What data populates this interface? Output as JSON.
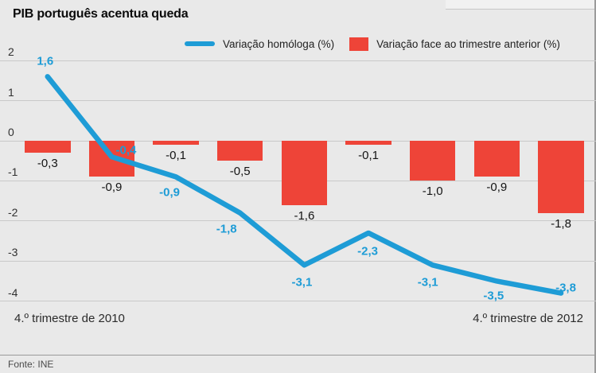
{
  "header": {
    "title": "PIB português acentua queda"
  },
  "legend": [
    {
      "type": "line",
      "label": "Variação homóloga (%)",
      "color": "#1E9CD6"
    },
    {
      "type": "square",
      "label": "Variação face ao trimestre anterior (%)",
      "color": "#EE4438"
    }
  ],
  "chart_data": {
    "type": "combo-line-bar",
    "title": "PIB português acentua queda",
    "yticks": [
      2,
      1,
      0,
      -1,
      -2,
      -3,
      -4
    ],
    "ylim": [
      -4.4,
      2.1
    ],
    "grid": true,
    "n_points": 9,
    "x_axis": {
      "start_label": "4.º trimestre de 2010",
      "end_label": "4.º trimestre de 2012"
    },
    "series": [
      {
        "name": "Variação homóloga (%)",
        "type": "line",
        "color": "#1E9CD6",
        "values": [
          1.6,
          -0.4,
          -0.9,
          -1.8,
          -3.1,
          -2.3,
          -3.1,
          -3.5,
          -3.8
        ],
        "labels": [
          "1,6",
          "-0,4",
          "-0,9",
          "-1,8",
          "-3,1",
          "-2,3",
          "-3,1",
          "-3,5",
          "-3,8"
        ]
      },
      {
        "name": "Variação face ao trimestre anterior (%)",
        "type": "bar",
        "color": "#EE4438",
        "values": [
          -0.3,
          -0.9,
          -0.1,
          -0.5,
          -1.6,
          -0.1,
          -1.0,
          -0.9,
          -1.8
        ],
        "labels": [
          "-0,3",
          "-0,9",
          "-0,1",
          "-0,5",
          "-1,6",
          "-0,1",
          "-1,0",
          "-0,9",
          "-1,8"
        ]
      }
    ]
  },
  "footer": {
    "source": "Fonte: INE"
  }
}
